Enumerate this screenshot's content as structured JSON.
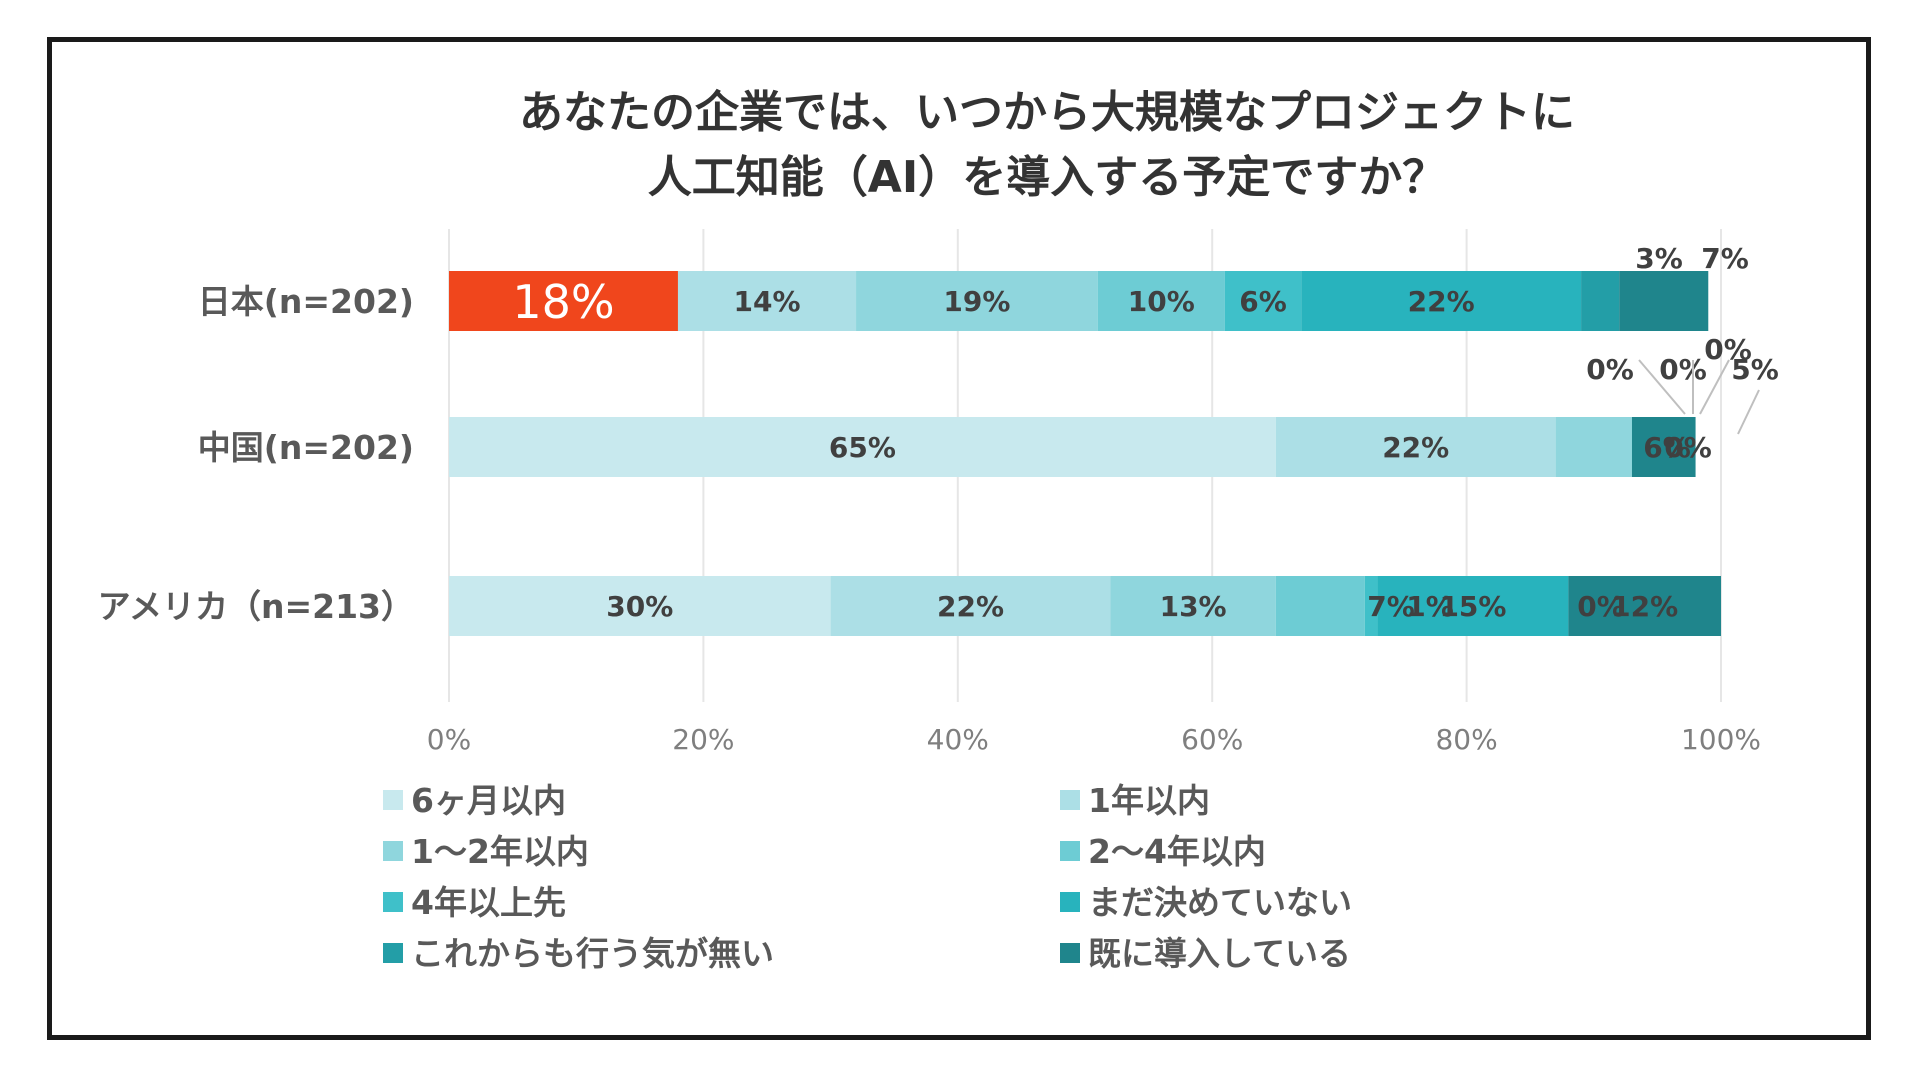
{
  "chart_data": {
    "type": "bar",
    "orientation": "horizontal",
    "stacked": "percent",
    "title": "あなたの企業では、いつから大規模なプロジェクトに\n人工知能（AI）を導入する予定ですか？",
    "categories": [
      "日本(n=202)",
      "中国(n=202)",
      "アメリカ（n=213）"
    ],
    "series": [
      {
        "name": "6ヶ月以内",
        "color": "#c8e9ee",
        "values": [
          18,
          65,
          30
        ]
      },
      {
        "name": "1年以内",
        "color": "#acdfe6",
        "values": [
          14,
          22,
          22
        ]
      },
      {
        "name": "1〜2年以内",
        "color": "#8fd6dd",
        "values": [
          19,
          6,
          13
        ]
      },
      {
        "name": "2〜4年以内",
        "color": "#6dccd4",
        "values": [
          10,
          0,
          7
        ]
      },
      {
        "name": "4年以上先",
        "color": "#3fc0c9",
        "values": [
          6,
          0,
          1
        ]
      },
      {
        "name": "まだ決めていない",
        "color": "#28b3bd",
        "values": [
          22,
          0,
          15
        ]
      },
      {
        "name": "これからも行う気が無い",
        "color": "#239ea7",
        "values": [
          3,
          0,
          0
        ]
      },
      {
        "name": "既に導入している",
        "color": "#1f858c",
        "values": [
          7,
          5,
          12
        ]
      }
    ],
    "value_labels": [
      [
        "18%",
        "14%",
        "19%",
        "10%",
        "6%",
        "22%",
        "3%",
        "7%"
      ],
      [
        "65%",
        "22%",
        "6%",
        "0%",
        "0%",
        "0%",
        "0%",
        "5%"
      ],
      [
        "30%",
        "22%",
        "13%",
        "7%",
        "1%",
        "15%",
        "0%",
        "12%"
      ]
    ],
    "highlight": {
      "category_index": 0,
      "series_index": 0,
      "color": "#f0461c",
      "label_color": "#ffffff"
    },
    "xlim": [
      0,
      100
    ],
    "x_ticks": [
      "0%",
      "20%",
      "40%",
      "60%",
      "80%",
      "100%"
    ],
    "xlabel": "",
    "ylabel": "",
    "grid": "vertical",
    "legend": "bottom, two columns"
  }
}
